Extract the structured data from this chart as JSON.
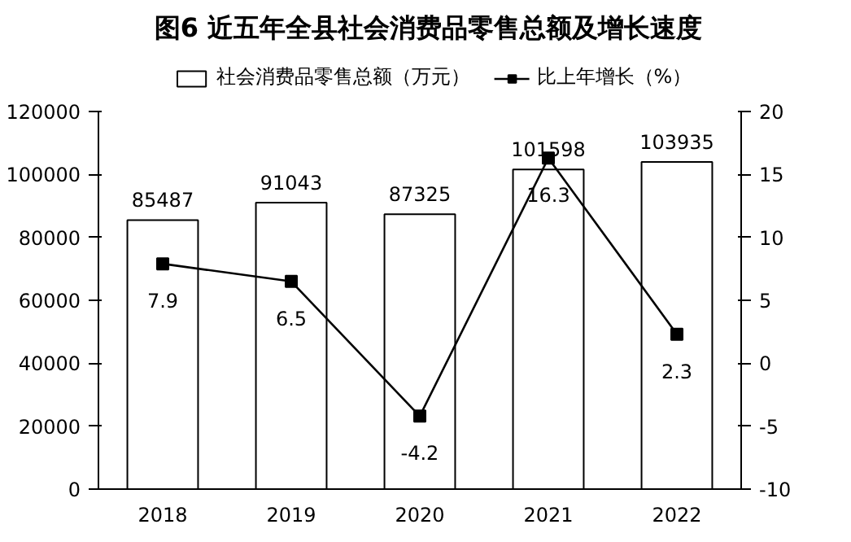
{
  "chart_data": {
    "type": "bar",
    "title": "图6  近五年全县社会消费品零售总额及增长速度",
    "categories": [
      "2018",
      "2019",
      "2020",
      "2021",
      "2022"
    ],
    "series": [
      {
        "name": "社会消费品零售总额（万元）",
        "color": "#ffffff",
        "values": [
          85487,
          91043,
          87325,
          101598,
          103935
        ]
      },
      {
        "name": "比上年增长（%）",
        "type": "line",
        "axis": "y2",
        "color": "#000000",
        "marker": "square",
        "values": [
          7.9,
          6.5,
          -4.2,
          16.3,
          2.3
        ]
      }
    ],
    "ylim": [
      0,
      120000
    ],
    "yticks": [
      0,
      20000,
      40000,
      60000,
      80000,
      100000,
      120000
    ],
    "y2lim": [
      -10,
      20
    ],
    "y2ticks": [
      -10,
      -5,
      0,
      5,
      10,
      15,
      20
    ],
    "data_labels": true,
    "legend": "top",
    "grid": false
  }
}
